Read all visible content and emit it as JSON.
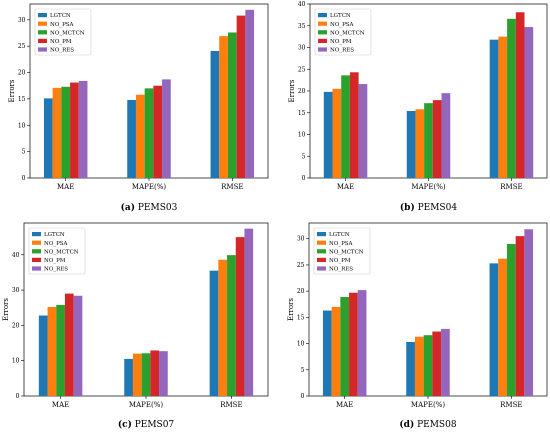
{
  "colors": {
    "LGTCN": "#1f77b4",
    "NO_PSA": "#ff7f0e",
    "NO_MCTCN": "#2ca02c",
    "NO_PM": "#d62728",
    "NO_RES": "#9467bd"
  },
  "chart_data": [
    {
      "type": "bar",
      "caption_letter": "(a)",
      "caption_text": "PEMS03",
      "ylabel": "Errors",
      "categories": [
        "MAE",
        "MAPE(%)",
        "RMSE"
      ],
      "yticks": [
        0,
        5,
        10,
        15,
        20,
        25,
        30
      ],
      "ylim": [
        0,
        33
      ],
      "grid": false,
      "legend_position": "top-left",
      "series": [
        {
          "name": "LGTCN",
          "values": [
            15.1,
            14.8,
            24.1
          ]
        },
        {
          "name": "NO_PSA",
          "values": [
            17.1,
            15.8,
            26.9
          ]
        },
        {
          "name": "NO_MCTCN",
          "values": [
            17.3,
            17.0,
            27.6
          ]
        },
        {
          "name": "NO_PM",
          "values": [
            18.1,
            17.5,
            30.8
          ]
        },
        {
          "name": "NO_RES",
          "values": [
            18.4,
            18.7,
            31.9
          ]
        }
      ]
    },
    {
      "type": "bar",
      "caption_letter": "(b)",
      "caption_text": "PEMS04",
      "ylabel": "Errors",
      "categories": [
        "MAE",
        "MAPE(%)",
        "RMSE"
      ],
      "yticks": [
        0,
        5,
        10,
        15,
        20,
        25,
        30,
        35,
        40
      ],
      "ylim": [
        0,
        40
      ],
      "grid": false,
      "legend_position": "top-left",
      "series": [
        {
          "name": "LGTCN",
          "values": [
            19.8,
            15.4,
            31.8
          ]
        },
        {
          "name": "NO_PSA",
          "values": [
            20.5,
            15.8,
            32.5
          ]
        },
        {
          "name": "NO_MCTCN",
          "values": [
            23.6,
            17.2,
            36.6
          ]
        },
        {
          "name": "NO_PM",
          "values": [
            24.3,
            17.9,
            38.1
          ]
        },
        {
          "name": "NO_RES",
          "values": [
            21.6,
            19.5,
            34.7
          ]
        }
      ]
    },
    {
      "type": "bar",
      "caption_letter": "(c)",
      "caption_text": "PEMS07",
      "ylabel": "Errors",
      "categories": [
        "MAE",
        "MAPE(%)",
        "RMSE"
      ],
      "yticks": [
        0,
        10,
        20,
        30,
        40
      ],
      "ylim": [
        0,
        49
      ],
      "grid": false,
      "legend_position": "top-left",
      "series": [
        {
          "name": "LGTCN",
          "values": [
            22.8,
            10.5,
            35.5
          ]
        },
        {
          "name": "NO_PSA",
          "values": [
            25.2,
            12.0,
            38.6
          ]
        },
        {
          "name": "NO_MCTCN",
          "values": [
            25.8,
            12.1,
            39.9
          ]
        },
        {
          "name": "NO_PM",
          "values": [
            29.0,
            12.9,
            45.0
          ]
        },
        {
          "name": "NO_RES",
          "values": [
            28.4,
            12.7,
            47.4
          ]
        }
      ]
    },
    {
      "type": "bar",
      "caption_letter": "(d)",
      "caption_text": "PEMS08",
      "ylabel": "Errors",
      "categories": [
        "MAE",
        "MAPE(%)",
        "RMSE"
      ],
      "yticks": [
        0,
        5,
        10,
        15,
        20,
        25,
        30
      ],
      "ylim": [
        0,
        33
      ],
      "grid": false,
      "legend_position": "top-left",
      "series": [
        {
          "name": "LGTCN",
          "values": [
            16.3,
            10.3,
            25.3
          ]
        },
        {
          "name": "NO_PSA",
          "values": [
            17.0,
            11.3,
            26.2
          ]
        },
        {
          "name": "NO_MCTCN",
          "values": [
            18.9,
            11.6,
            29.0
          ]
        },
        {
          "name": "NO_PM",
          "values": [
            19.7,
            12.3,
            30.5
          ]
        },
        {
          "name": "NO_RES",
          "values": [
            20.2,
            12.8,
            31.8
          ]
        }
      ]
    }
  ]
}
